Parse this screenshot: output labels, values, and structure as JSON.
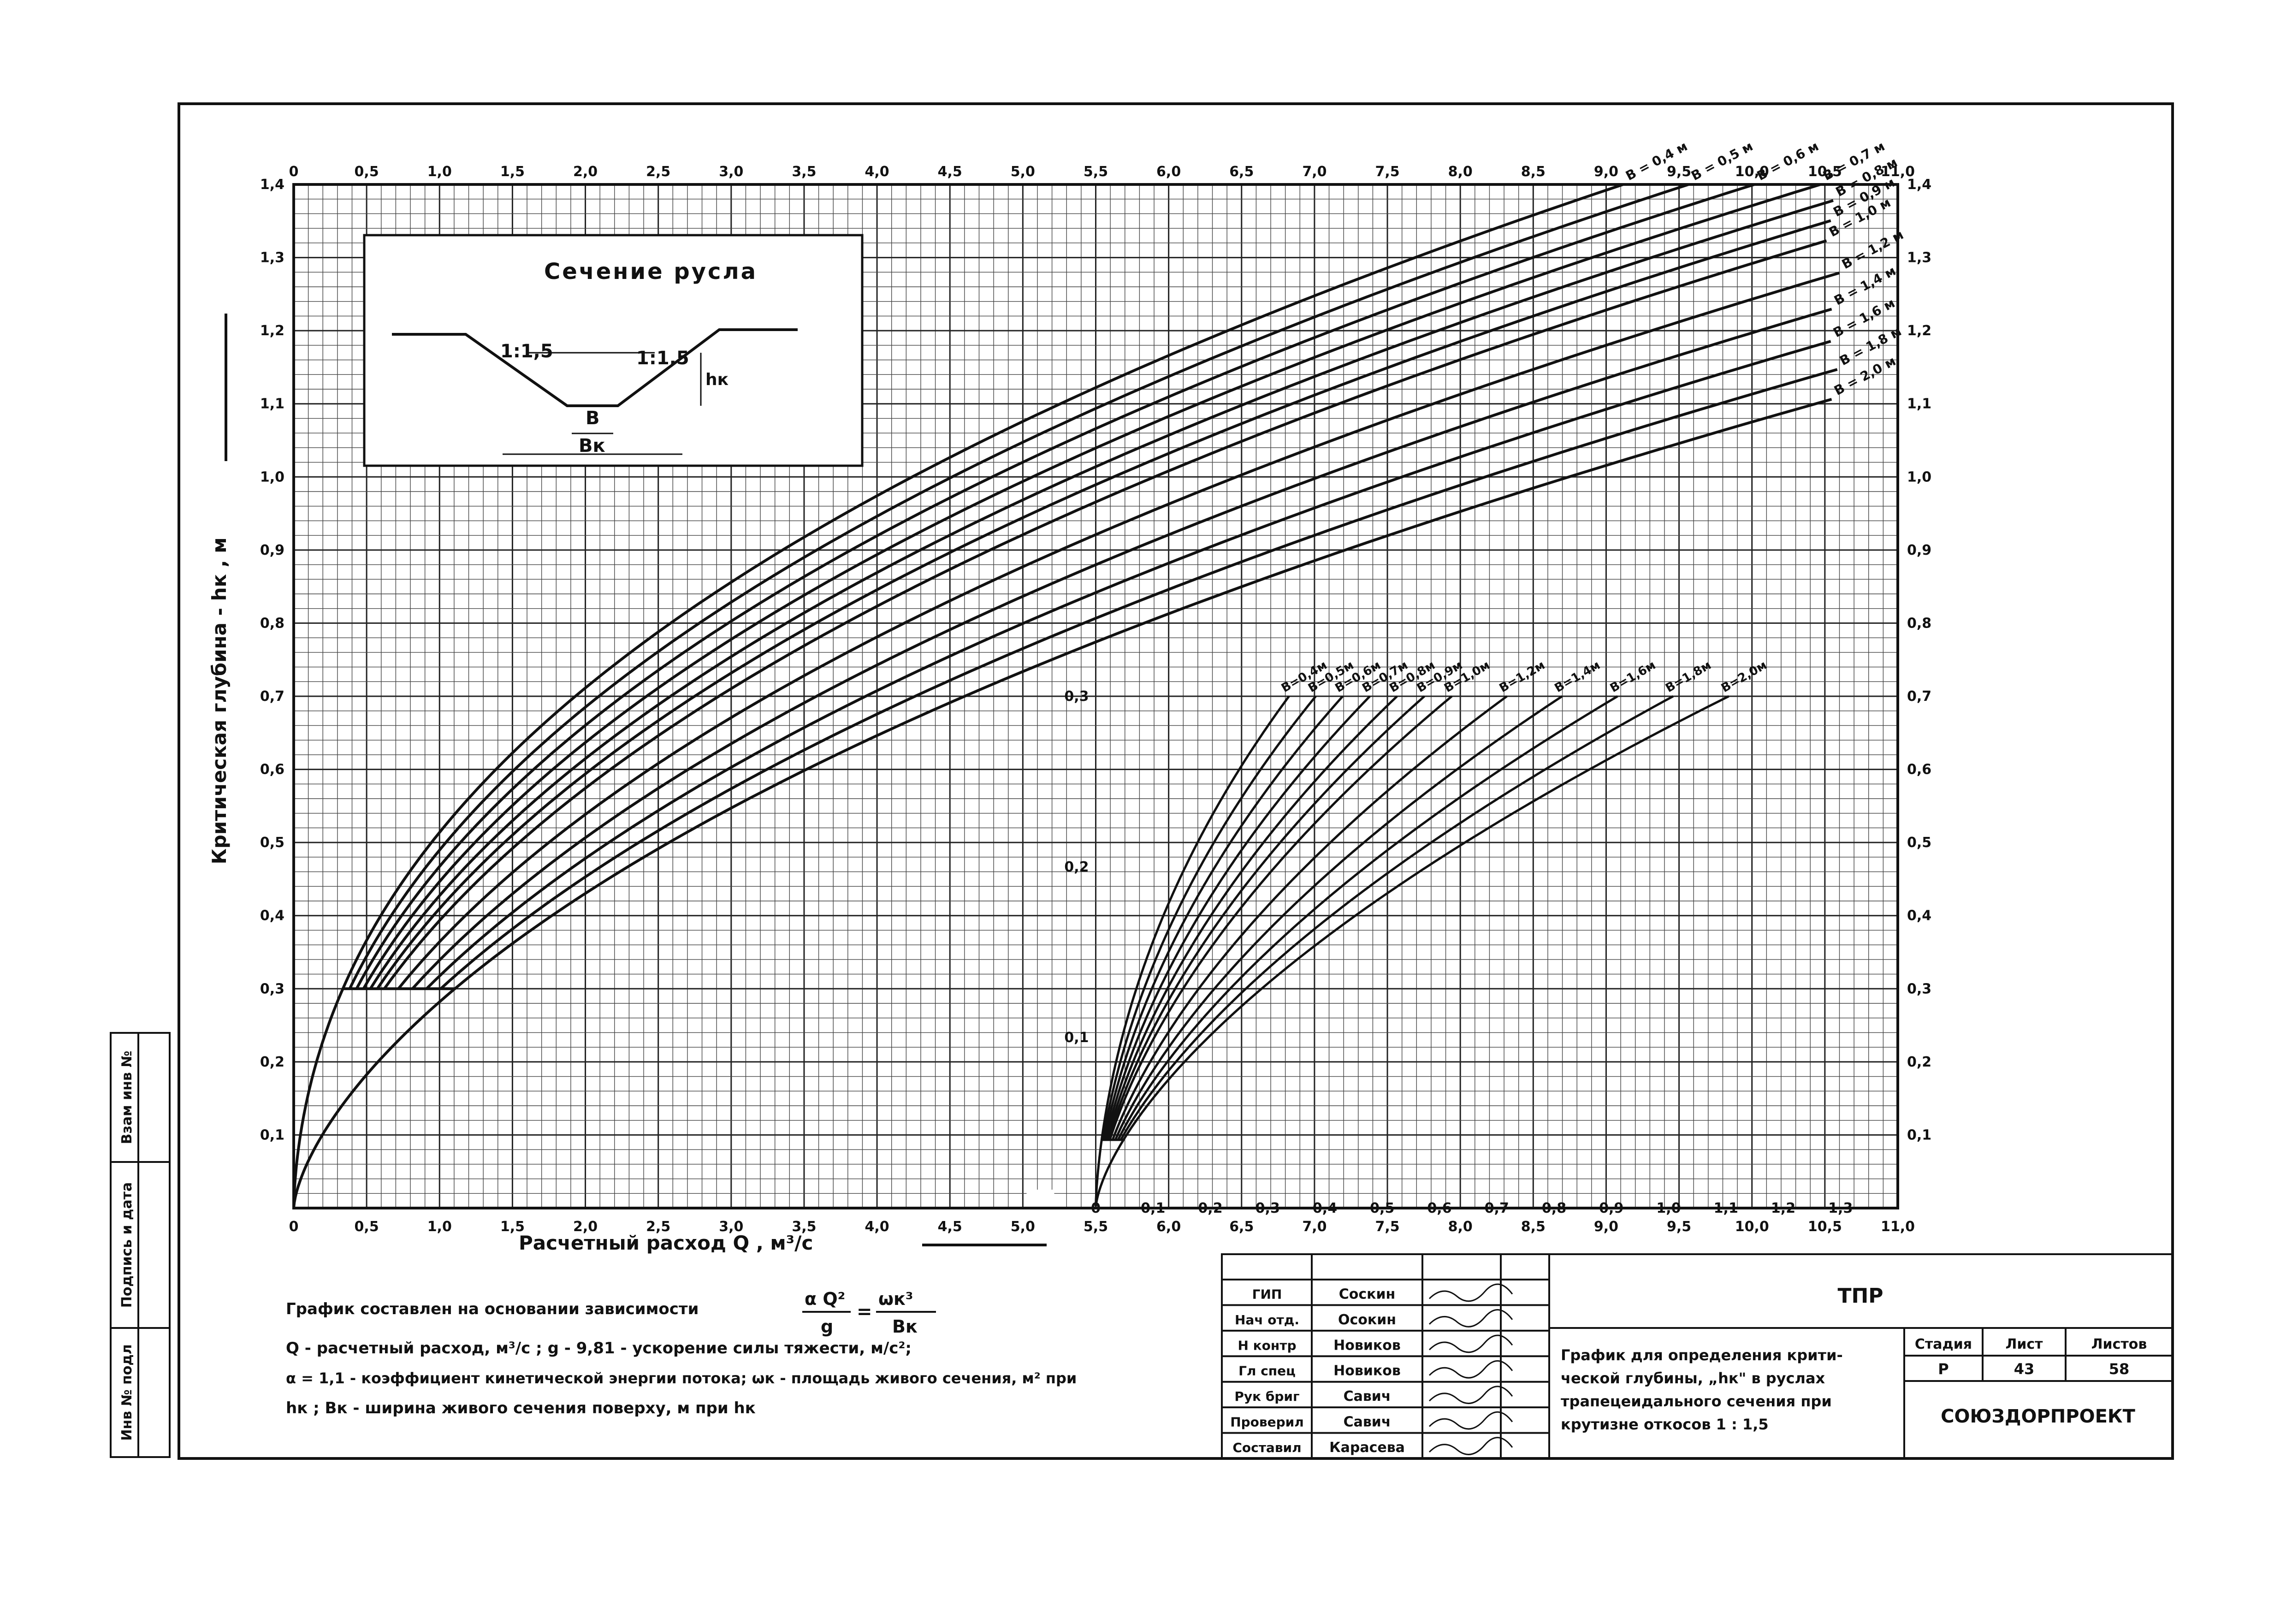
{
  "chart_data": {
    "type": "line",
    "title": "",
    "xlabel": "Расчетный расход  Q ,  м³/с",
    "ylabel": "Критическая глубина - hк ,   м",
    "xlim": [
      0,
      11.0
    ],
    "ylim": [
      0,
      1.4
    ],
    "x_ticks": [
      "0",
      "0,5",
      "1,0",
      "1,5",
      "2,0",
      "2,5",
      "3,0",
      "3,5",
      "4,0",
      "4,5",
      "5,0",
      "5,5",
      "6,0",
      "6,5",
      "7,0",
      "7,5",
      "8,0",
      "8,5",
      "9,0",
      "9,5",
      "10,0",
      "10,5",
      "11,0"
    ],
    "y_ticks": [
      "0,1",
      "0,2",
      "0,3",
      "0,4",
      "0,5",
      "0,6",
      "0,7",
      "0,8",
      "0,9",
      "1,0",
      "1,1",
      "1,2",
      "1,3",
      "1,4"
    ],
    "grid": true,
    "series": [
      {
        "name": "B = 0,4 м",
        "b": 0.4
      },
      {
        "name": "B = 0,5 м",
        "b": 0.5
      },
      {
        "name": "B = 0,6 м",
        "b": 0.6
      },
      {
        "name": "B = 0,7 м",
        "b": 0.7
      },
      {
        "name": "B = 0,8 м",
        "b": 0.8
      },
      {
        "name": "B = 0,9 м",
        "b": 0.9
      },
      {
        "name": "B = 1,0 м",
        "b": 1.0
      },
      {
        "name": "B = 1,2 м",
        "b": 1.2
      },
      {
        "name": "B = 1,4 м",
        "b": 1.4
      },
      {
        "name": "B = 1,6 м",
        "b": 1.6
      },
      {
        "name": "B = 1,8 м",
        "b": 1.8
      },
      {
        "name": "B = 2,0 м",
        "b": 2.0
      }
    ],
    "inset_series": [
      {
        "name": "B=0,4м",
        "b": 0.4
      },
      {
        "name": "B=0,5м",
        "b": 0.5
      },
      {
        "name": "B=0,6м",
        "b": 0.6
      },
      {
        "name": "B=0,7м",
        "b": 0.7
      },
      {
        "name": "B=0,8м",
        "b": 0.8
      },
      {
        "name": "B=0,9м",
        "b": 0.9
      },
      {
        "name": "B=1,0м",
        "b": 1.0
      },
      {
        "name": "B=1,2м",
        "b": 1.2
      },
      {
        "name": "B=1,4м",
        "b": 1.4
      },
      {
        "name": "B=1,6м",
        "b": 1.6
      },
      {
        "name": "B=1,8м",
        "b": 1.8
      },
      {
        "name": "B=2,0м",
        "b": 2.0
      }
    ],
    "slope_m": 1.5,
    "alpha": 1.1,
    "g": 9.81,
    "main_hmin": 0.3,
    "inset": {
      "x_ticks": [
        "0",
        "0,1",
        "0,2",
        "0,3",
        "0,4",
        "0,5",
        "0,6",
        "0,7",
        "0,8",
        "0,9",
        "1,0",
        "1,1",
        "1,2",
        "1,3"
      ],
      "y_ticks": [
        "0,1",
        "0,2",
        "0,3"
      ],
      "xlim": [
        0,
        1.4
      ],
      "ylim": [
        0,
        0.3
      ],
      "hmin": 0.02
    }
  },
  "section": {
    "title": "Сечение русла",
    "slope_left": "1:1,5",
    "slope_right": "1:1,5",
    "b_label": "B",
    "bk_label": "Bк",
    "hk_label": "hк"
  },
  "notes": {
    "line1_text": "График составлен на основании зависимости",
    "line1_formula_lhs_num": "α Q²",
    "line1_formula_lhs_den": "g",
    "line1_formula_rhs_num": "ωк³",
    "line1_formula_rhs_den": "Bк",
    "line2": "Q - расчетный расход,   м³/с   ;  g - 9,81 - ускорение  силы тяжести,  м/с²;",
    "line3": "α = 1,1 - коэффициент кинетической энергии потока; ωк - площадь живого сечения, м² при",
    "line4": "hк ;  Bк - ширина живого сечения поверху,    м при hк"
  },
  "titleblock": {
    "roles": [
      "ГИП",
      "Нач отд.",
      "Н контр",
      "Гл спец",
      "Рук бриг",
      "Проверил",
      "Составил"
    ],
    "names": [
      "Соскин",
      "Осокин",
      "Новиков",
      "Новиков",
      "Савич",
      "Савич",
      "Карасева"
    ],
    "code": "ТПР",
    "description_lines": [
      "График для определения крити-",
      "ческой глубины, „hк\" в руслах",
      "трапецеидального сечения  при",
      "крутизне откосов  1 : 1,5"
    ],
    "stage_header": "Стадия",
    "sheet_header": "Лист",
    "sheets_header": "Листов",
    "stage": "Р",
    "sheet": "43",
    "sheets": "58",
    "org": "СОЮЗДОРПРОЕКТ"
  },
  "side_stamp": {
    "labels": [
      "Взам инв №",
      "Подпись и дата",
      "Инв № подл"
    ]
  }
}
